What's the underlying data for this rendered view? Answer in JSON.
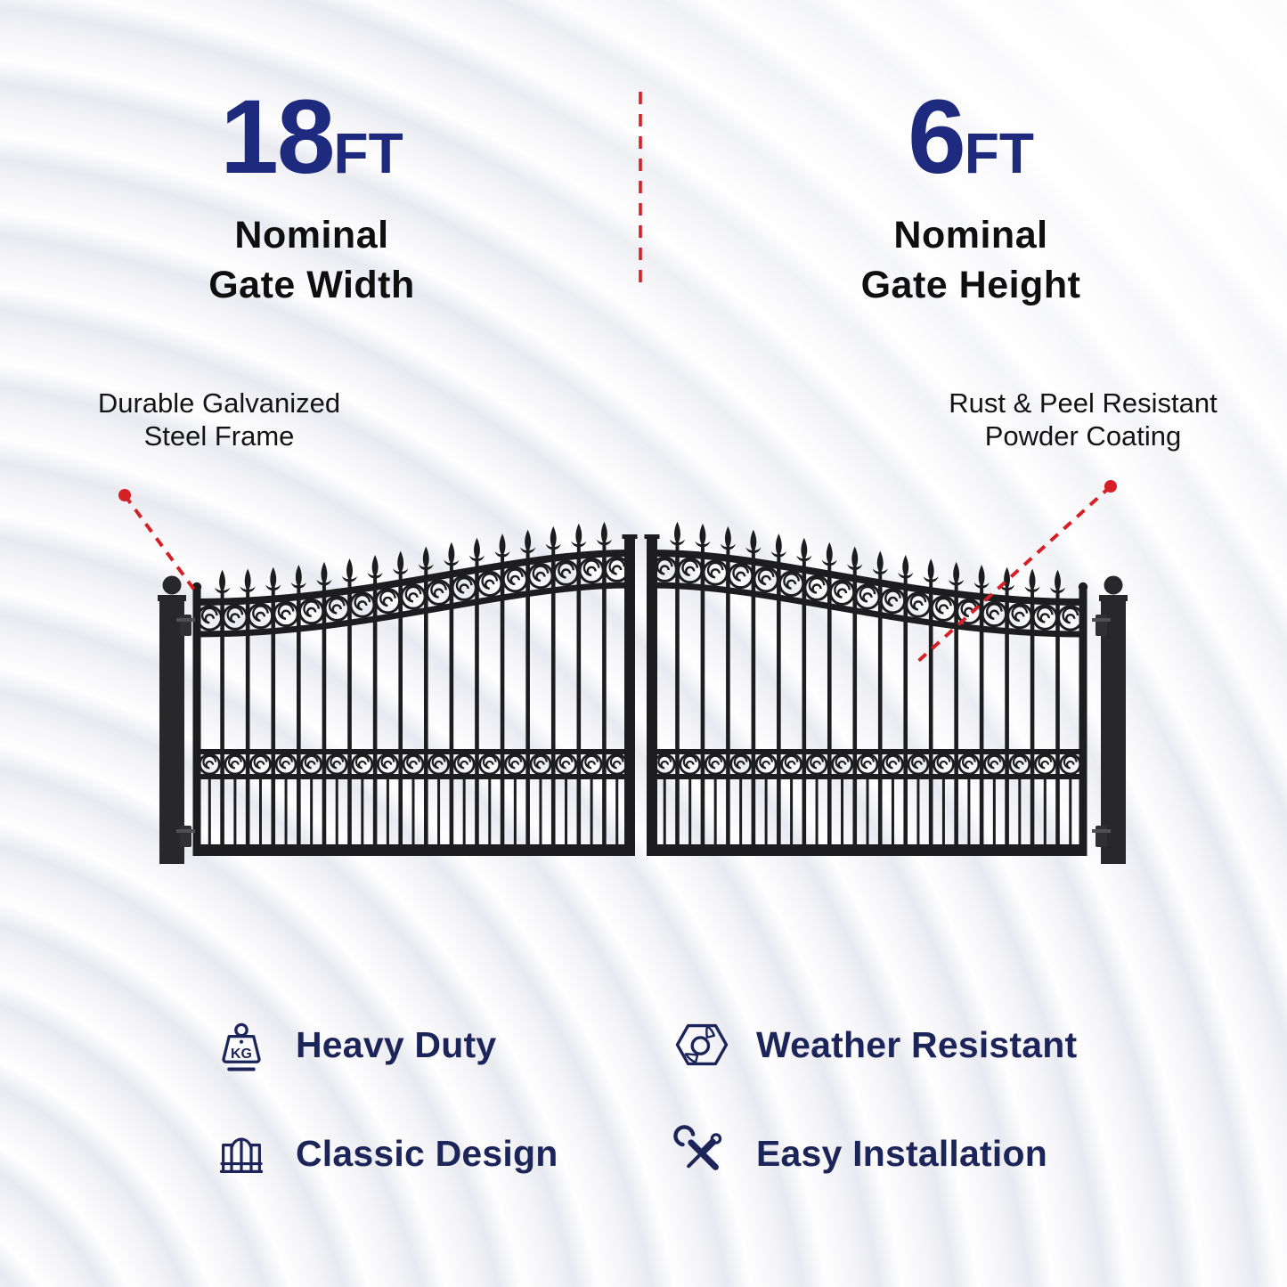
{
  "header": {
    "width_spec": {
      "value": "18",
      "unit": "FT",
      "line1": "Nominal",
      "line2": "Gate Width"
    },
    "height_spec": {
      "value": "6",
      "unit": "FT",
      "line1": "Nominal",
      "line2": "Gate Height"
    }
  },
  "callouts": {
    "left": {
      "line1": "Durable Galvanized",
      "line2": "Steel Frame"
    },
    "right": {
      "line1": "Rust & Peel Resistant",
      "line2": "Powder Coating"
    }
  },
  "features": [
    {
      "icon": "kg-weight-icon",
      "label": "Heavy Duty",
      "icon_text": "KG"
    },
    {
      "icon": "hex-nut-icon",
      "label": "Weather Resistant"
    },
    {
      "icon": "arched-gate-icon",
      "label": "Classic Design"
    },
    {
      "icon": "crossed-tools-icon",
      "label": "Easy Installation"
    }
  ],
  "colors": {
    "header_navy": "#1e2a7e",
    "feature_navy": "#1b2559",
    "text_black": "#0f0f10",
    "accent_red": "#d62027",
    "gate_black": "#1d1d1f",
    "post_black": "#28282b"
  }
}
